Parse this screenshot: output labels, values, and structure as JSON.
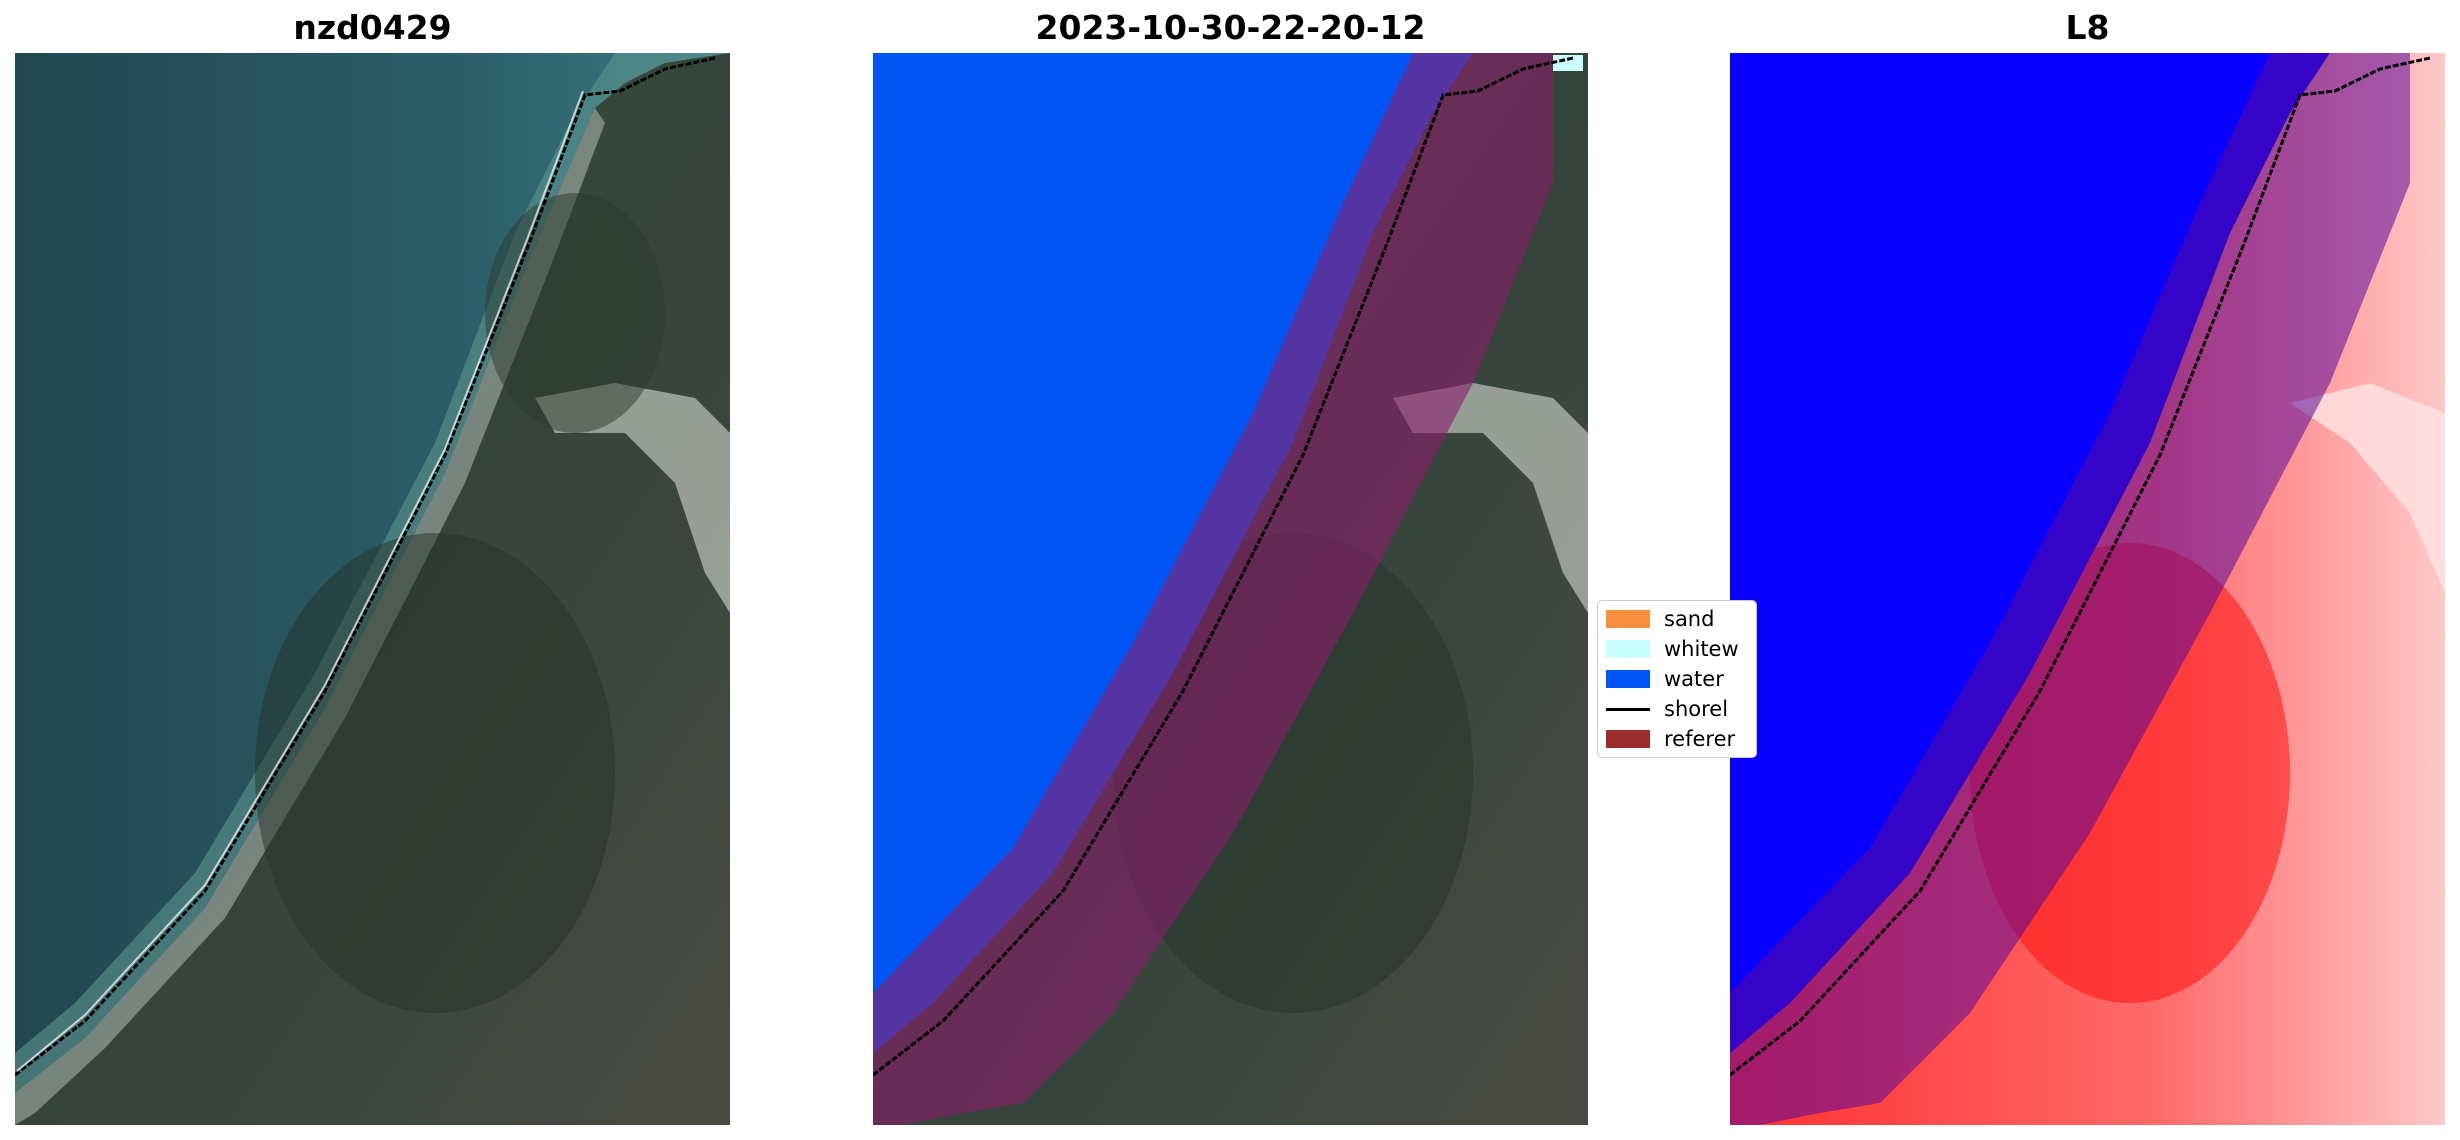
{
  "panels": [
    {
      "title": "nzd0429"
    },
    {
      "title": "2023-10-30-22-20-12"
    },
    {
      "title": "L8"
    }
  ],
  "legend": {
    "items": [
      {
        "label": "sand",
        "color": "#f98e3f"
      },
      {
        "label": "whitew",
        "color": "#c9ffff"
      },
      {
        "label": "water",
        "color": "#0055f5"
      },
      {
        "label": "shorel",
        "color": "#000000"
      },
      {
        "label": "referer",
        "color": "#9c2b2b"
      }
    ]
  },
  "colors": {
    "sea": "#28545f",
    "surf": "#6ea4a0",
    "land": "#37463a",
    "water_class": "#0055f5",
    "reference_buffer": "#8a1e6a",
    "heat_water": "#0800ff",
    "heat_land": "#ff2a2a"
  }
}
